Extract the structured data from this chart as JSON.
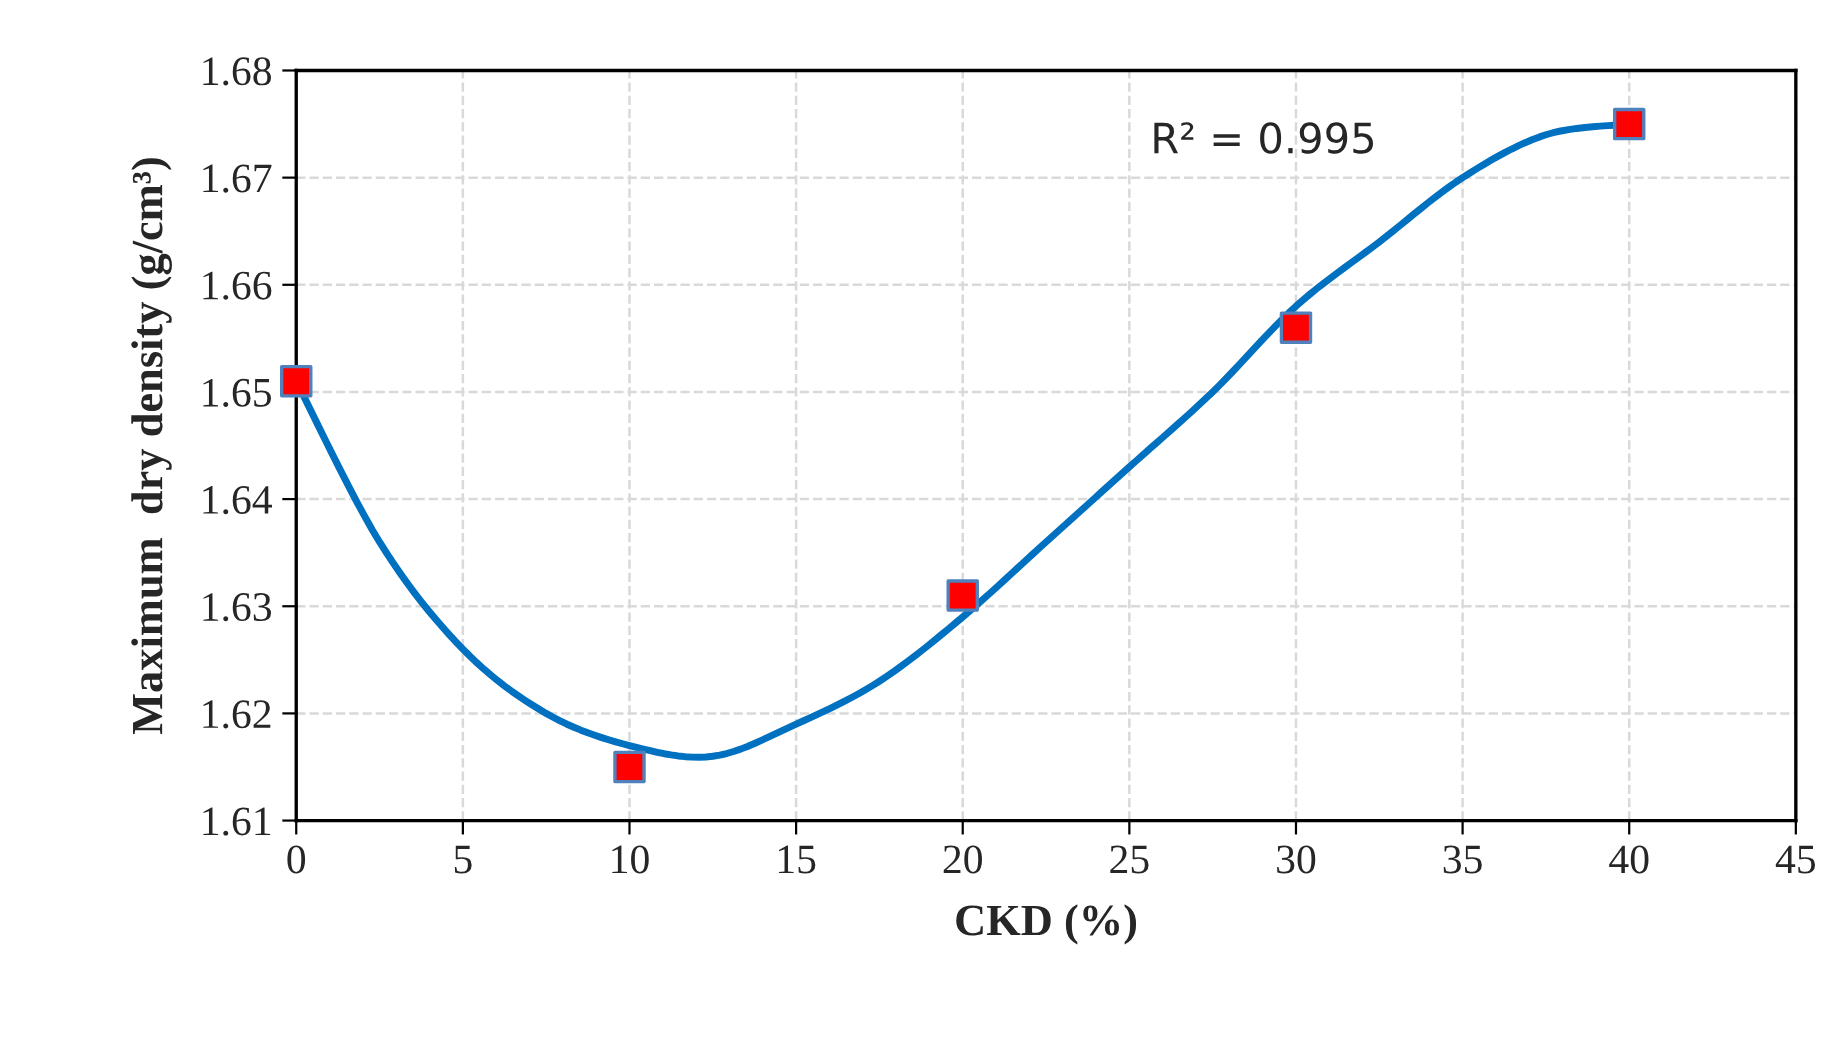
{
  "chart_data": {
    "type": "scatter",
    "xlabel": "CKD (%)",
    "ylabel": "Maximum  dry density (g/cm³)",
    "xlim": [
      0,
      45
    ],
    "xticks": [
      0,
      5,
      10,
      15,
      20,
      25,
      30,
      35,
      40,
      45
    ],
    "ylim": [
      1.61,
      1.68
    ],
    "yticks": [
      1.61,
      1.62,
      1.63,
      1.64,
      1.65,
      1.66,
      1.67,
      1.68
    ],
    "grid": true,
    "annotations": [
      "R² = 0.995"
    ],
    "series": [
      {
        "type": "line",
        "marker": "none",
        "color": "#0070c0",
        "x": [
          0,
          2.5,
          5,
          7.5,
          10,
          12.5,
          15,
          17.5,
          20,
          22.5,
          25,
          27.5,
          30,
          32.5,
          35,
          37.5,
          40
        ],
        "values": [
          1.651,
          1.636,
          1.626,
          1.62,
          1.617,
          1.616,
          1.619,
          1.623,
          1.629,
          1.636,
          1.643,
          1.65,
          1.658,
          1.664,
          1.67,
          1.674,
          1.675
        ]
      },
      {
        "marker": "square",
        "color": "#ff0000",
        "x": [
          0,
          10,
          20,
          30,
          40
        ],
        "values": [
          1.651,
          1.615,
          1.631,
          1.656,
          1.675
        ]
      }
    ]
  }
}
